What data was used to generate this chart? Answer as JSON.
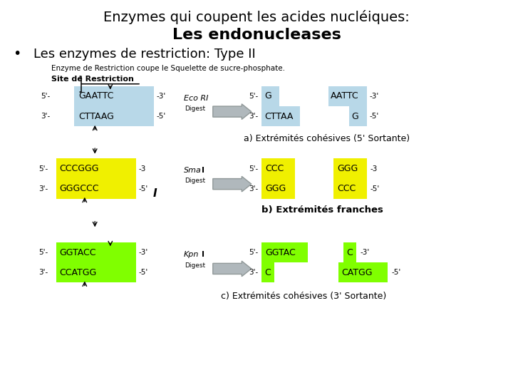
{
  "title_line1": "Enzymes qui coupent les acides nucléiques:",
  "title_line2": "Les endonucleases",
  "subtitle": "Les enzymes de restriction: Type II",
  "desc1": "Enzyme de Restriction coupe le Squelette de sucre-phosphate.",
  "desc2": "Site de Restriction",
  "bg_color": "#ffffff",
  "color_blue": "#b8d8e8",
  "color_yellow": "#f0f000",
  "color_green": "#80ff00",
  "section_a_label": "a) Extrémités cohésives (5' Sortante)",
  "section_b_label": "b) Extrémités franches",
  "section_c_label": "c) Extrémités cohésives (3' Sortante)",
  "arrow_color": "#aaaaaa",
  "font_family": "DejaVu Sans"
}
